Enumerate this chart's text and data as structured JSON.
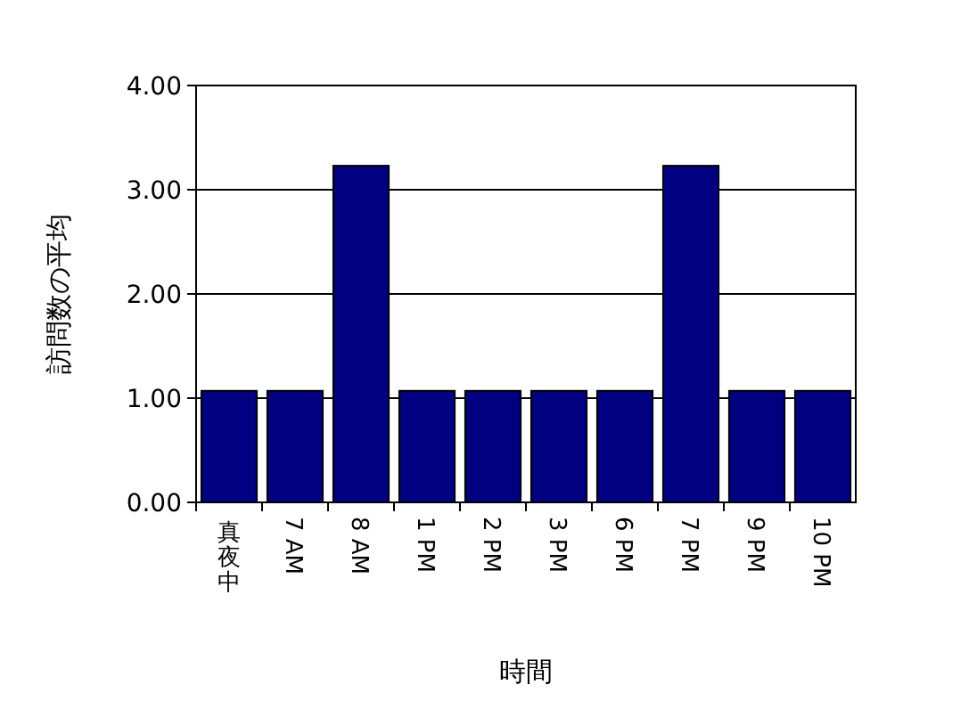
{
  "chart_data": {
    "type": "bar",
    "xlabel": "時間",
    "ylabel": "訪問数の平均",
    "categories": [
      "真夜中",
      "7 AM",
      "8 AM",
      "1 PM",
      "2 PM",
      "3 PM",
      "6 PM",
      "7 PM",
      "9 PM",
      "10 PM"
    ],
    "values": [
      1.07,
      1.07,
      3.23,
      1.07,
      1.07,
      1.07,
      1.07,
      3.23,
      1.07,
      1.07
    ],
    "color": "#000080",
    "ylim": [
      0,
      4
    ],
    "yticks": [
      {
        "value": 0,
        "label": "0.00"
      },
      {
        "value": 1,
        "label": "1.00"
      },
      {
        "value": 2,
        "label": "2.00"
      },
      {
        "value": 3,
        "label": "3.00"
      },
      {
        "value": 4,
        "label": "4.00"
      }
    ],
    "grid": "y"
  }
}
